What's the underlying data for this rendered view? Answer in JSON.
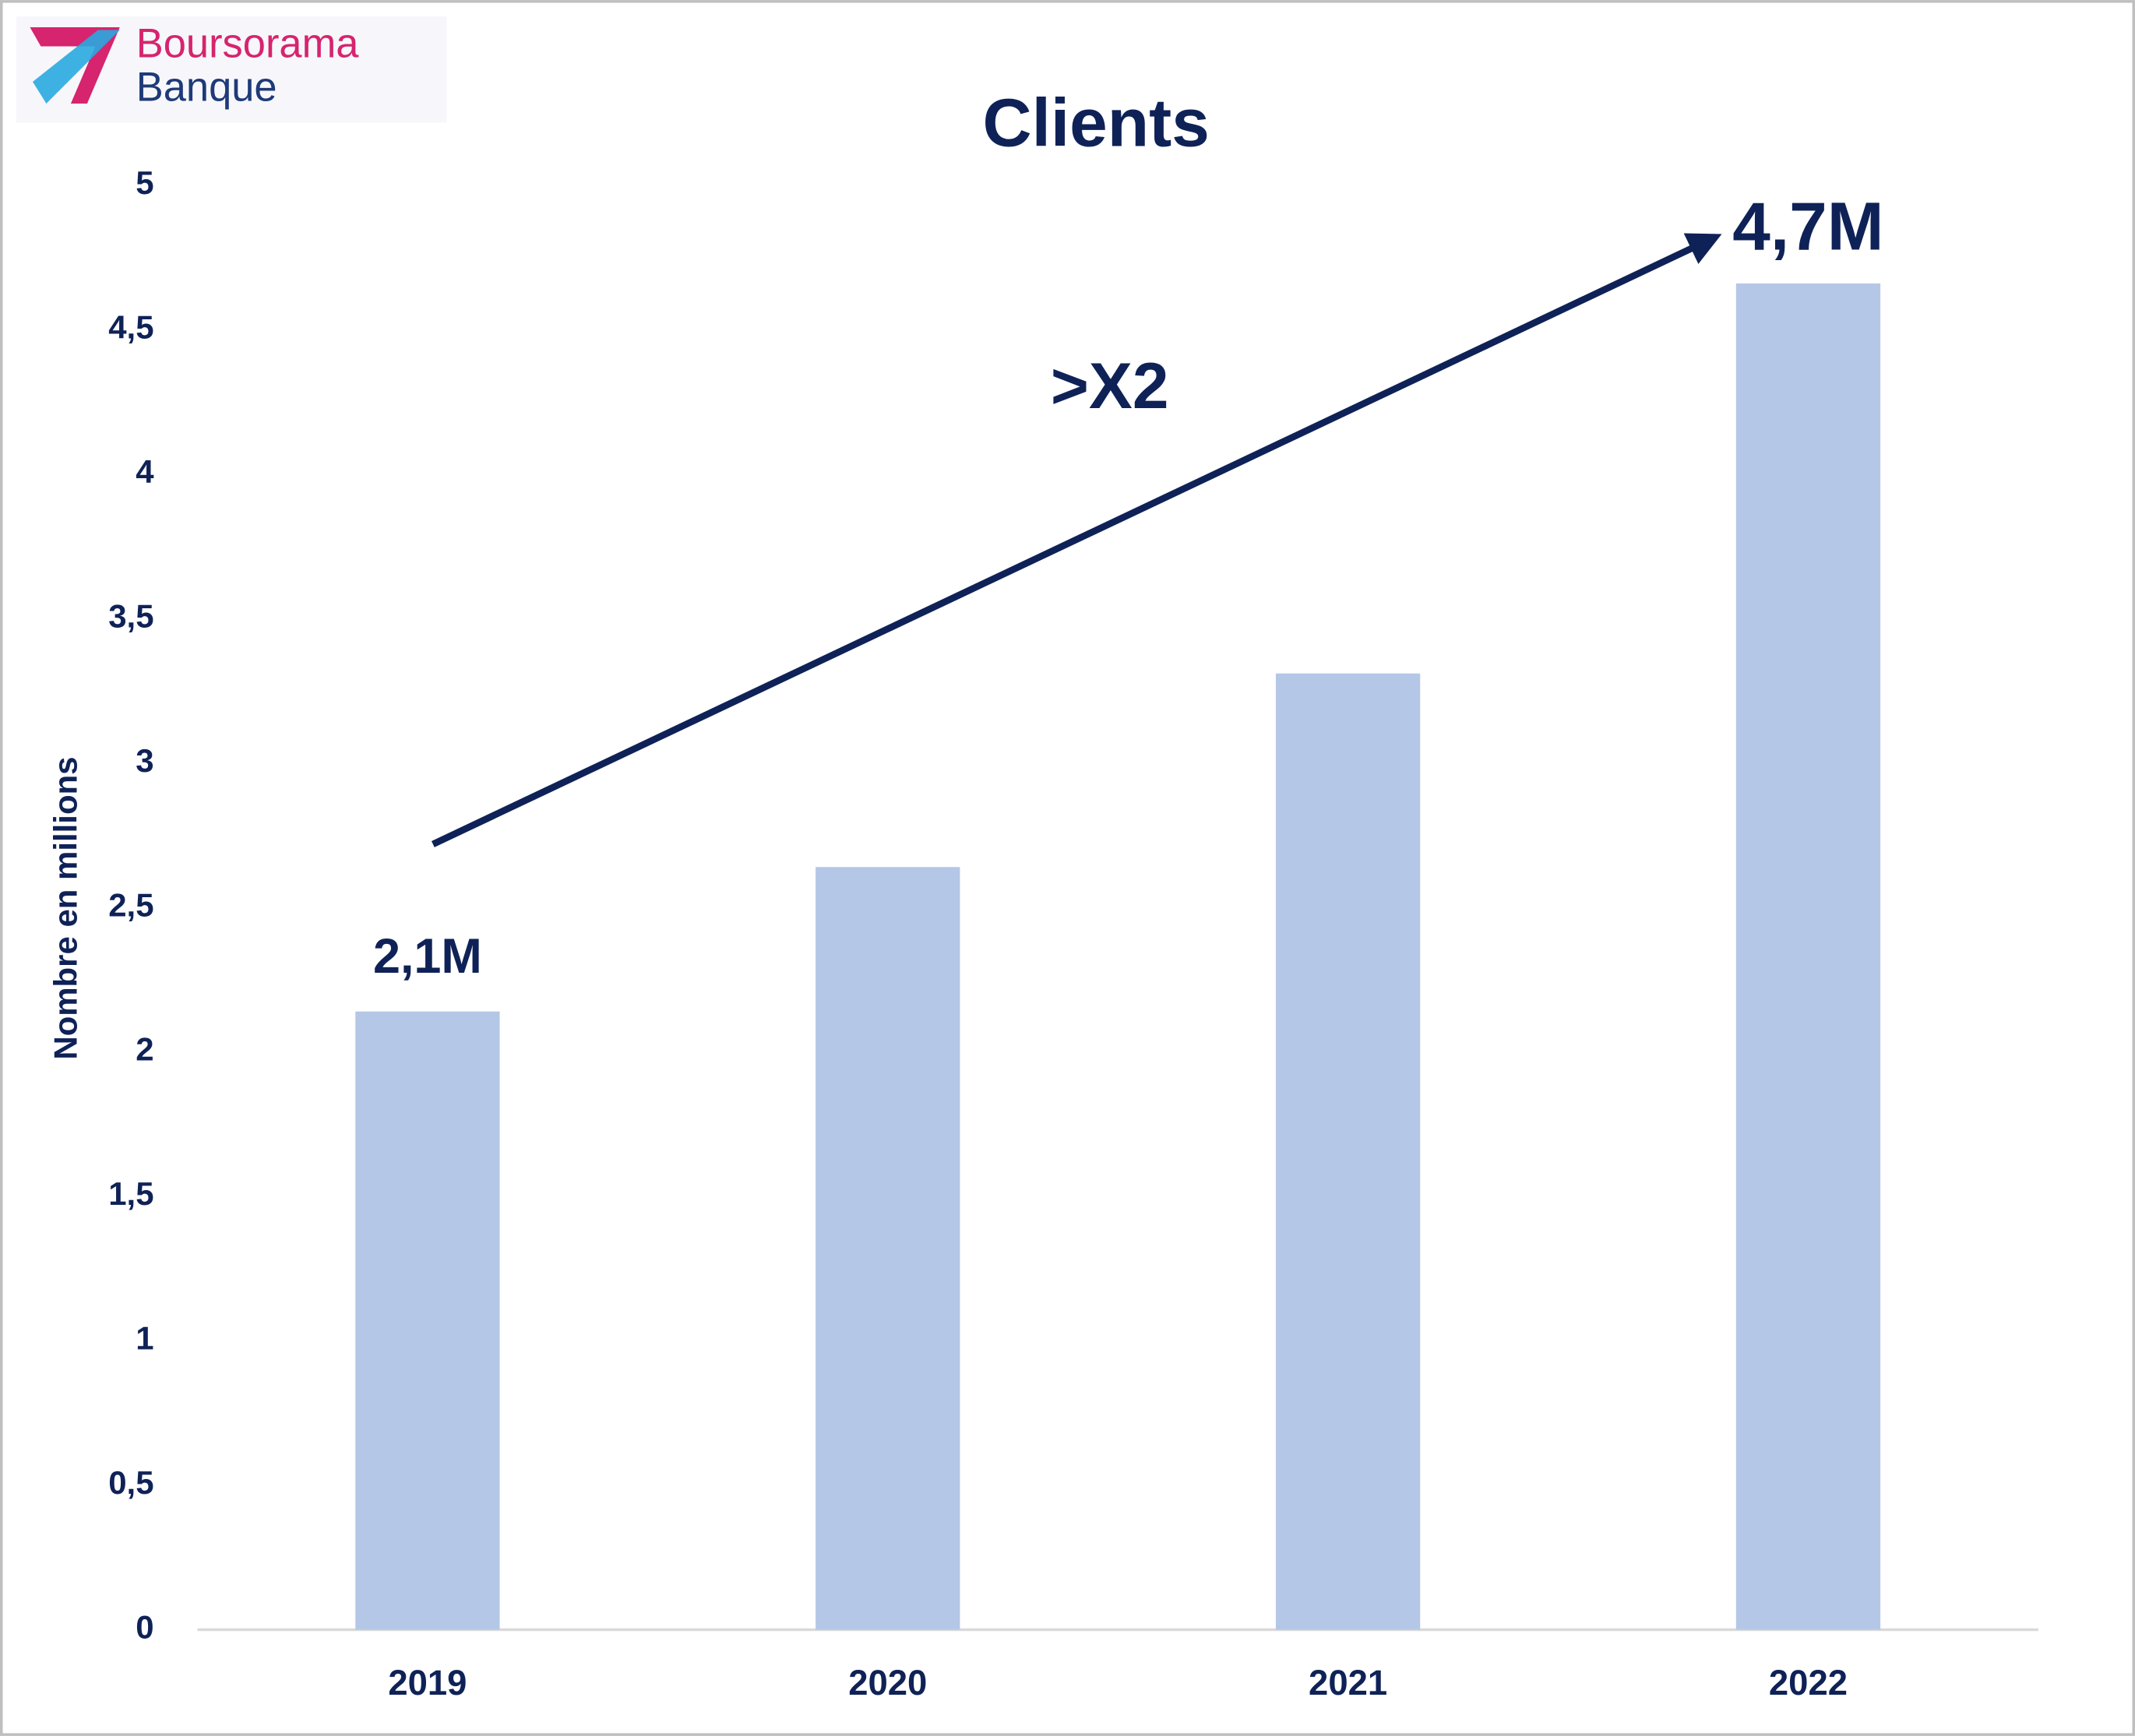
{
  "logo": {
    "lines": [
      "Boursorama",
      "Banque"
    ]
  },
  "chart_data": {
    "type": "bar",
    "title": "Clients",
    "y_label": "Nombre en millions",
    "categories": [
      "2019",
      "2020",
      "2021",
      "2022"
    ],
    "values": [
      2.14,
      2.64,
      3.31,
      4.66
    ],
    "value_labels": [
      "2,1M",
      null,
      null,
      "4,7M"
    ],
    "color": "#b4c7e7",
    "ylim": [
      0,
      5
    ],
    "yticks": [
      0,
      {
        "value": 0.5,
        "label": "0,5"
      },
      1,
      {
        "value": 1.5,
        "label": "1,5"
      },
      2,
      {
        "value": 2.5,
        "label": "2,5"
      },
      3,
      {
        "value": 3.5,
        "label": "3,5"
      },
      4,
      {
        "value": 4.5,
        "label": "4,5"
      },
      5
    ],
    "annotation": ">X2"
  }
}
